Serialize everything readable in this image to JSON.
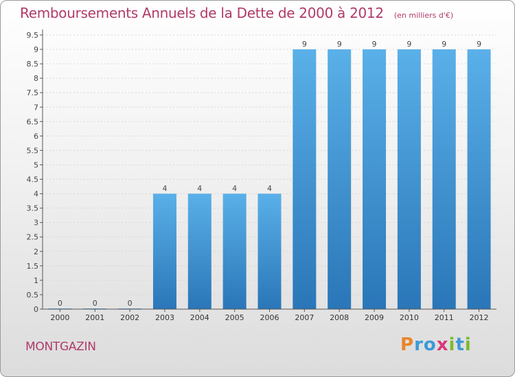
{
  "chart_data": {
    "type": "bar",
    "title": "Remboursements Annuels de la Dette de 2000 à 2012",
    "subtitle": "(en milliers d'€)",
    "categories": [
      "2000",
      "2001",
      "2002",
      "2003",
      "2004",
      "2005",
      "2006",
      "2007",
      "2008",
      "2009",
      "2010",
      "2011",
      "2012"
    ],
    "values": [
      0,
      0,
      0,
      4,
      4,
      4,
      4,
      9,
      9,
      9,
      9,
      9,
      9
    ],
    "ylim": [
      0,
      9.5
    ],
    "yticks": [
      "0",
      "0.5",
      "1",
      "1.5",
      "2",
      "2.5",
      "3",
      "3.5",
      "4",
      "4.5",
      "5",
      "5.5",
      "6",
      "6.5",
      "7",
      "7.5",
      "8",
      "8.5",
      "9",
      "9.5"
    ],
    "xlabel": "",
    "ylabel": "",
    "bar_color": "#3d8fd0",
    "title_color": "#b03a6a"
  },
  "commune": "MONTGAZIN",
  "logo": {
    "text": "Proxiti",
    "letters": [
      {
        "ch": "P",
        "color": "#e8862a"
      },
      {
        "ch": "r",
        "color": "#3a9ad9"
      },
      {
        "ch": "o",
        "color": "#3a9ad9"
      },
      {
        "ch": "x",
        "color": "#d63a7a"
      },
      {
        "ch": "i",
        "color": "#7cb832"
      },
      {
        "ch": "t",
        "color": "#3a9ad9"
      },
      {
        "ch": "i",
        "color": "#7cb832"
      }
    ]
  }
}
